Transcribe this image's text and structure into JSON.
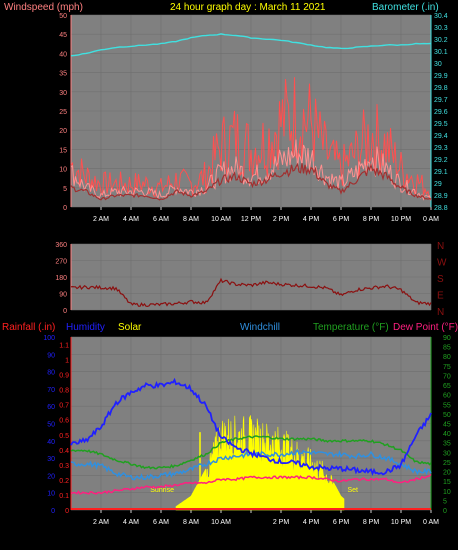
{
  "header": {
    "title": "24 hour graph day : March 11 2021",
    "left_label": "Windspeed (mph)",
    "right_label": "Barometer (.in)"
  },
  "colors": {
    "plot_bg": "#808080",
    "grid": "#6f6f6f",
    "wind_left": "#ff8080",
    "baro": "#40e0e0",
    "wind_line": "#ff9090",
    "gust_line": "#ff5050",
    "avg_line": "#a03030",
    "dir_line": "#8b1010",
    "rain": "#ff2020",
    "humidity": "#2020ff",
    "solar": "#ffff00",
    "windchill": "#3090e0",
    "temperature": "#20a020",
    "dewpoint": "#ff2080",
    "title_color": "#ffff00"
  },
  "x_ticks": [
    "2 AM",
    "4 AM",
    "6 AM",
    "8 AM",
    "10 AM",
    "12 PM",
    "2 PM",
    "4 PM",
    "6 PM",
    "8 PM",
    "10 PM",
    "0 AM"
  ],
  "x_ticks_bottom": [
    "2 AM",
    "4 AM",
    "6 AM",
    "8 AM",
    "10 AM",
    "",
    "2 PM",
    "4 PM",
    "6 PM",
    "8 PM",
    "10 PM",
    "0 AM"
  ],
  "chart_data": [
    {
      "type": "line",
      "title": "24 hour graph day : March 11 2021",
      "ylabel": "Windspeed (mph)",
      "y2label": "Barometer (.in)",
      "ylim": [
        0,
        50
      ],
      "y2lim": [
        28.8,
        30.4
      ],
      "yticks": [
        0,
        5,
        10,
        15,
        20,
        25,
        30,
        35,
        40,
        45,
        50
      ],
      "y2ticks": [
        "28.8",
        "28.9",
        "29",
        "29.1",
        "29.2",
        "29.3",
        "29.4",
        "29.5",
        "29.6",
        "29.7",
        "29.8",
        "29.9",
        "30",
        "30.1",
        "30.2",
        "30.3",
        "30.4"
      ],
      "x": [
        0,
        1,
        2,
        3,
        4,
        5,
        6,
        7,
        8,
        9,
        10,
        11,
        12,
        13,
        14,
        15,
        16,
        17,
        18,
        19,
        20,
        21,
        22,
        23,
        24
      ],
      "series": [
        {
          "name": "wind",
          "values": [
            9,
            5,
            3,
            4,
            4,
            4,
            3,
            5,
            4,
            5,
            9,
            10,
            8,
            9,
            12,
            14,
            13,
            8,
            6,
            9,
            13,
            10,
            6,
            4,
            2
          ]
        },
        {
          "name": "gust",
          "values": [
            11,
            8,
            6,
            6,
            6,
            6,
            5,
            7,
            6,
            8,
            16,
            18,
            15,
            17,
            22,
            24,
            22,
            14,
            10,
            14,
            19,
            16,
            10,
            7,
            4
          ]
        },
        {
          "name": "avg",
          "values": [
            5,
            4,
            2,
            3,
            3,
            3,
            2,
            4,
            3,
            4,
            7,
            8,
            6,
            7,
            9,
            10,
            10,
            6,
            4,
            7,
            10,
            8,
            5,
            3,
            2
          ]
        },
        {
          "name": "barometer",
          "values": [
            30.06,
            30.08,
            30.11,
            30.13,
            30.14,
            30.15,
            30.16,
            30.18,
            30.21,
            30.23,
            30.24,
            30.23,
            30.21,
            30.2,
            30.19,
            30.17,
            30.15,
            30.13,
            30.12,
            30.13,
            30.14,
            30.15,
            30.15,
            30.16,
            30.16
          ]
        }
      ]
    },
    {
      "type": "line",
      "ylim": [
        0,
        360
      ],
      "yticks": [
        0,
        90,
        180,
        270,
        360
      ],
      "y2ticks": [
        "N",
        "E",
        "S",
        "W",
        "N"
      ],
      "x": [
        0,
        1,
        2,
        3,
        4,
        5,
        6,
        7,
        8,
        9,
        10,
        11,
        12,
        13,
        14,
        15,
        16,
        17,
        18,
        19,
        20,
        21,
        22,
        23,
        24
      ],
      "series": [
        {
          "name": "wind direction",
          "values": [
            120,
            125,
            122,
            118,
            30,
            28,
            30,
            35,
            45,
            40,
            160,
            140,
            135,
            150,
            140,
            135,
            130,
            120,
            80,
            110,
            120,
            130,
            110,
            40,
            35
          ]
        }
      ]
    },
    {
      "type": "line",
      "ylabel": "Rainfall (.in)",
      "y2label": "Dew Point (°F)",
      "ylim": [
        0,
        100
      ],
      "rain_ticks": [
        "0",
        "0.1",
        "0.2",
        "0.3",
        "0.4",
        "0.5",
        "0.6",
        "0.7",
        "0.8",
        "0.9",
        "1",
        "1.1"
      ],
      "humidity_ticks": [
        0,
        10,
        20,
        30,
        40,
        50,
        60,
        70,
        80,
        90,
        100
      ],
      "temp_ticks": [
        0,
        5,
        10,
        15,
        20,
        25,
        30,
        35,
        40,
        45,
        50,
        55,
        60,
        65,
        70,
        75,
        80,
        85,
        90
      ],
      "labels": {
        "rainfall": "Rainfall (.in)",
        "humidity": "Humidity",
        "solar": "Solar",
        "windchill": "Windchill",
        "temperature": "Temperature (°F)",
        "dewpoint": "Dew Point (°F)",
        "sunrise": "Sunrise",
        "sunset": "Set"
      },
      "x": [
        0,
        1,
        2,
        3,
        4,
        5,
        6,
        7,
        8,
        9,
        10,
        11,
        12,
        13,
        14,
        15,
        16,
        17,
        18,
        19,
        20,
        21,
        22,
        23,
        24
      ],
      "series": [
        {
          "name": "Humidity",
          "values": [
            38,
            40,
            48,
            62,
            68,
            72,
            72,
            74,
            70,
            60,
            42,
            36,
            33,
            30,
            28,
            27,
            25,
            24,
            24,
            23,
            22,
            22,
            26,
            43,
            55
          ]
        },
        {
          "name": "Windchill",
          "values": [
            24,
            24,
            23,
            19,
            17,
            17,
            18,
            19,
            21,
            24,
            27,
            28,
            29,
            29,
            29,
            30,
            30,
            29,
            29,
            28,
            29,
            27,
            24,
            20,
            20
          ]
        },
        {
          "name": "Temperature",
          "values": [
            31,
            31,
            29,
            26,
            24,
            22,
            22,
            23,
            26,
            29,
            35,
            37,
            38,
            38,
            37,
            37,
            37,
            36,
            36,
            36,
            36,
            34,
            31,
            25,
            24
          ]
        },
        {
          "name": "Dew Point",
          "values": [
            9,
            9,
            9,
            10,
            11,
            12,
            12,
            13,
            14,
            14,
            16,
            16,
            17,
            17,
            17,
            17,
            17,
            16,
            15,
            16,
            16,
            16,
            14,
            16,
            18
          ]
        },
        {
          "name": "Solar",
          "values": [
            0,
            0,
            0,
            0,
            0,
            0,
            0,
            2,
            8,
            24,
            50,
            50,
            50,
            47,
            44,
            38,
            32,
            24,
            8,
            0,
            0,
            0,
            0,
            0,
            0
          ]
        },
        {
          "name": "Rainfall",
          "values": [
            0,
            0,
            0,
            0,
            0,
            0,
            0,
            0,
            0,
            0,
            0,
            0,
            0,
            0,
            0,
            0,
            0,
            0,
            0,
            0,
            0,
            0,
            0,
            0,
            0
          ]
        }
      ]
    }
  ]
}
